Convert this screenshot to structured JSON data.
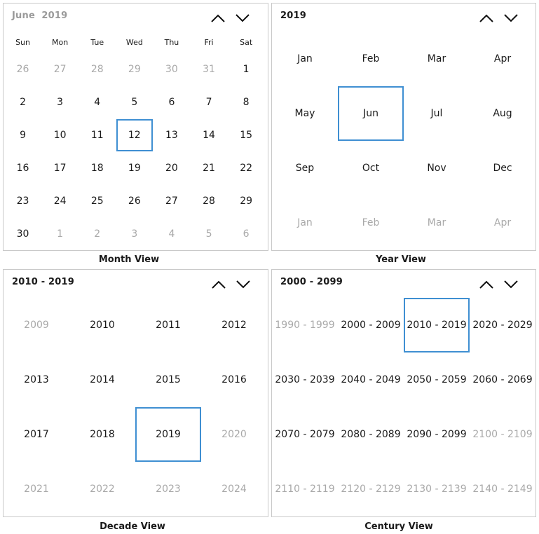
{
  "month_view": {
    "header_month": "June",
    "header_year": "2019",
    "caption": "Month View",
    "weekdays": [
      "Sun",
      "Mon",
      "Tue",
      "Wed",
      "Thu",
      "Fri",
      "Sat"
    ],
    "days": [
      [
        "26",
        "27",
        "28",
        "29",
        "30",
        "31",
        "1"
      ],
      [
        "2",
        "3",
        "4",
        "5",
        "6",
        "7",
        "8"
      ],
      [
        "9",
        "10",
        "11",
        "12",
        "13",
        "14",
        "15"
      ],
      [
        "16",
        "17",
        "18",
        "19",
        "20",
        "21",
        "22"
      ],
      [
        "23",
        "24",
        "25",
        "26",
        "27",
        "28",
        "29"
      ],
      [
        "30",
        "1",
        "2",
        "3",
        "4",
        "5",
        "6"
      ]
    ],
    "selected": "12"
  },
  "year_view": {
    "header": "2019",
    "caption": "Year View",
    "months": [
      [
        "Jan",
        "Feb",
        "Mar",
        "Apr"
      ],
      [
        "May",
        "Jun",
        "Jul",
        "Aug"
      ],
      [
        "Sep",
        "Oct",
        "Nov",
        "Dec"
      ],
      [
        "Jan",
        "Feb",
        "Mar",
        "Apr"
      ]
    ],
    "selected": "Jun"
  },
  "decade_view": {
    "header": "2010 - 2019",
    "caption": "Decade View",
    "years": [
      [
        "2009",
        "2010",
        "2011",
        "2012"
      ],
      [
        "2013",
        "2014",
        "2015",
        "2016"
      ],
      [
        "2017",
        "2018",
        "2019",
        "2020"
      ],
      [
        "2021",
        "2022",
        "2023",
        "2024"
      ]
    ],
    "selected": "2019"
  },
  "century_view": {
    "header": "2000 - 2099",
    "caption": "Century View",
    "decades": [
      [
        "1990 - 1999",
        "2000 - 2009",
        "2010 - 2019",
        "2020 - 2029"
      ],
      [
        "2030 - 2039",
        "2040 - 2049",
        "2050 - 2059",
        "2060 - 2069"
      ],
      [
        "2070 - 2079",
        "2080 - 2089",
        "2090 - 2099",
        "2100 - 2109"
      ],
      [
        "2110 - 2119",
        "2120 - 2129",
        "2130 - 2139",
        "2140 - 2149"
      ]
    ],
    "selected": "2010 - 2019"
  },
  "icons": {
    "prev": "chevron-up-icon",
    "next": "chevron-down-icon"
  },
  "colors": {
    "selection_border": "#3f8fd2",
    "muted_text": "#a9a9a9"
  }
}
